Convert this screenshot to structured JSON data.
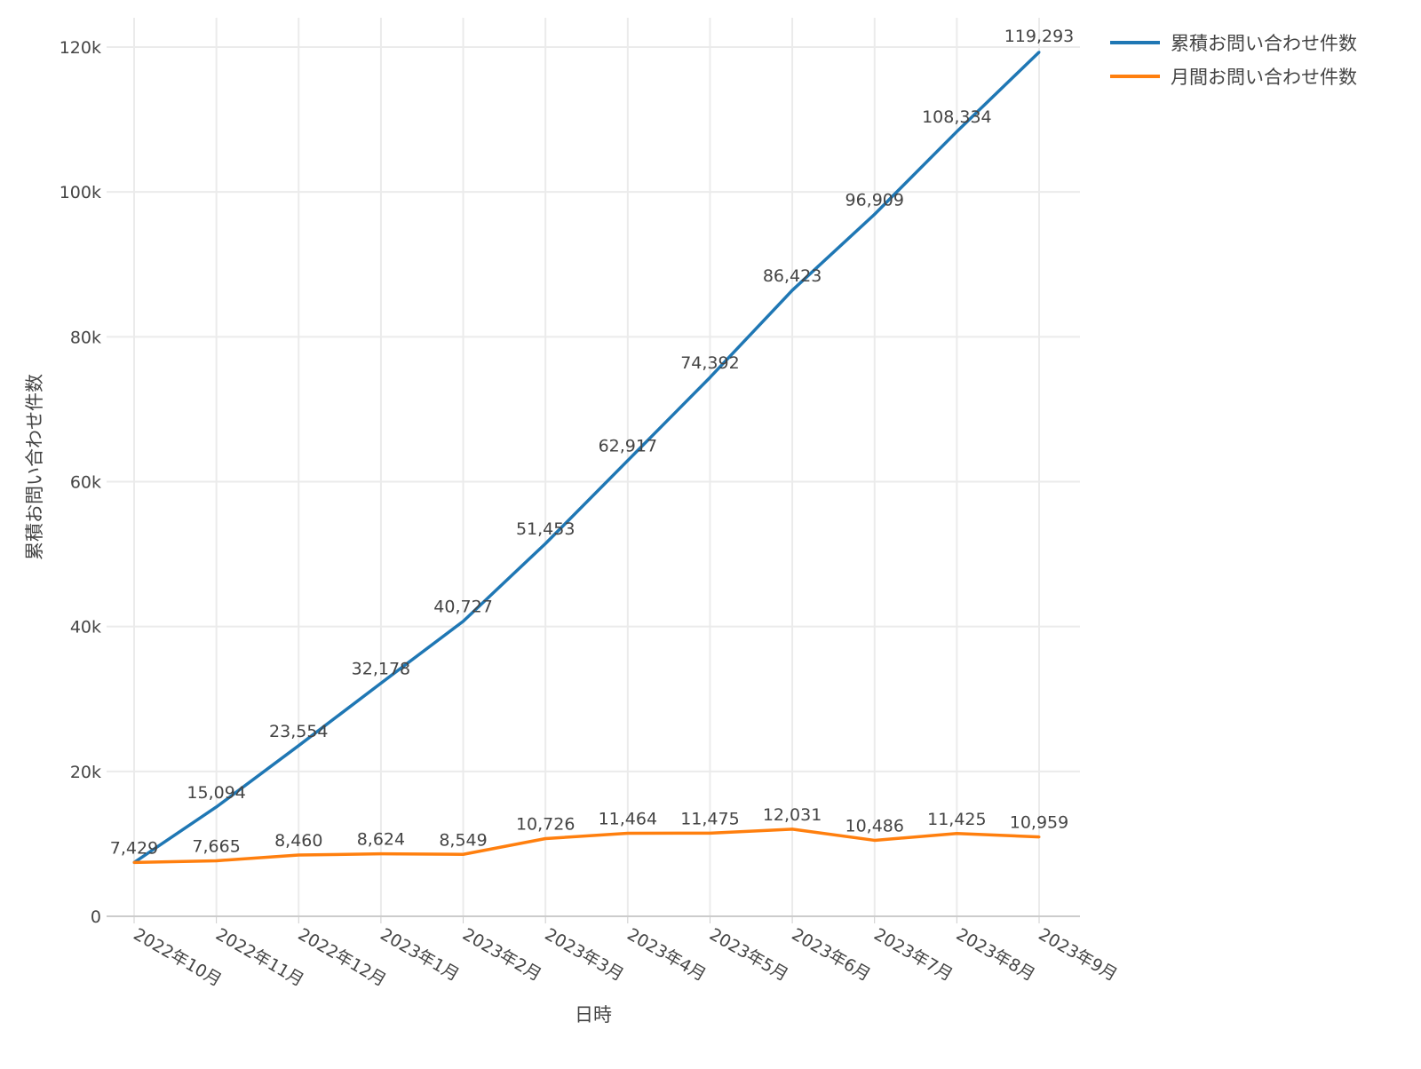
{
  "chart_data": {
    "type": "line",
    "title": "",
    "xlabel": "日時",
    "ylabel": "累積お問い合わせ件数",
    "categories": [
      "2022年10月",
      "2022年11月",
      "2022年12月",
      "2023年1月",
      "2023年2月",
      "2023年3月",
      "2023年4月",
      "2023年5月",
      "2023年6月",
      "2023年7月",
      "2023年8月",
      "2023年9月"
    ],
    "series": [
      {
        "name": "累積お問い合わせ件数",
        "color": "#1f77b4",
        "values": [
          7429,
          15094,
          23554,
          32178,
          40727,
          51453,
          62917,
          74392,
          86423,
          96909,
          108334,
          119293
        ],
        "labels": [
          "7,429",
          "15,094",
          "23,554",
          "32,178",
          "40,727",
          "51,453",
          "62,917",
          "74,392",
          "86,423",
          "96,909",
          "108,334",
          "119,293"
        ]
      },
      {
        "name": "月間お問い合わせ件数",
        "color": "#ff7f0e",
        "values": [
          7429,
          7665,
          8460,
          8624,
          8549,
          10726,
          11464,
          11475,
          12031,
          10486,
          11425,
          10959
        ],
        "labels": [
          "7,429",
          "7,665",
          "8,460",
          "8,624",
          "8,549",
          "10,726",
          "11,464",
          "11,475",
          "12,031",
          "10,486",
          "11,425",
          "10,959"
        ]
      }
    ],
    "ylim": [
      0,
      124000
    ],
    "yticks": [
      0,
      20000,
      40000,
      60000,
      80000,
      100000,
      120000
    ],
    "ytick_labels": [
      "0",
      "20k",
      "40k",
      "60k",
      "80k",
      "100k",
      "120k"
    ],
    "grid": true,
    "legend_position": "top-right-outside"
  }
}
